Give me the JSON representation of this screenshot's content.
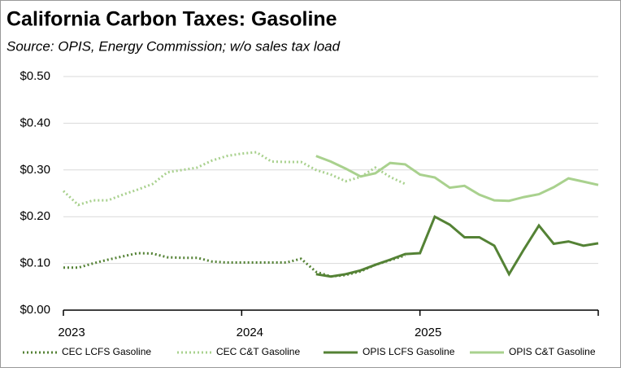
{
  "chart_data": {
    "type": "line",
    "title": "California Carbon Taxes:  Gasoline",
    "subtitle": "Source:  OPIS, Energy Commission; w/o sales tax load",
    "x": [
      2023,
      2023.083,
      2023.167,
      2023.25,
      2023.333,
      2023.417,
      2023.5,
      2023.583,
      2023.667,
      2023.75,
      2023.833,
      2023.917,
      2024,
      2024.083,
      2024.167,
      2024.25,
      2024.333,
      2024.417,
      2024.5,
      2024.583,
      2024.667,
      2024.75,
      2024.833,
      2024.917,
      2025,
      2025.083,
      2025.167,
      2025.25,
      2025.333,
      2025.417,
      2025.5,
      2025.583,
      2025.667,
      2025.75,
      2025.833,
      2025.917,
      2026
    ],
    "xlim": [
      2023,
      2026
    ],
    "xticks": [
      2023,
      2024,
      2025
    ],
    "ylim": [
      0,
      0.5
    ],
    "yticks": [
      {
        "value": 0,
        "label": "$0.00"
      },
      {
        "value": 0.1,
        "label": "$0.10"
      },
      {
        "value": 0.2,
        "label": "$0.20"
      },
      {
        "value": 0.3,
        "label": "$0.30"
      },
      {
        "value": 0.4,
        "label": "$0.40"
      },
      {
        "value": 0.5,
        "label": "$0.50"
      }
    ],
    "grid": true,
    "legend": "bottom",
    "series": [
      {
        "name": "CEC LCFS Gasoline",
        "color": "#548235",
        "style": "dotted",
        "values": [
          0.091,
          0.091,
          0.1,
          0.108,
          0.115,
          0.122,
          0.121,
          0.113,
          0.112,
          0.112,
          0.104,
          0.102,
          0.102,
          0.102,
          0.102,
          0.102,
          0.11,
          0.082,
          0.072,
          0.075,
          0.083,
          0.097,
          0.107,
          0.117,
          null,
          null,
          null,
          null,
          null,
          null,
          null,
          null,
          null,
          null,
          null,
          null,
          null
        ]
      },
      {
        "name": "CEC C&T Gasoline",
        "color": "#a9d18e",
        "style": "dotted",
        "values": [
          0.255,
          0.225,
          0.235,
          0.235,
          0.247,
          0.258,
          0.27,
          0.295,
          0.3,
          0.305,
          0.32,
          0.33,
          0.335,
          0.338,
          0.318,
          0.317,
          0.317,
          0.3,
          0.29,
          0.276,
          0.285,
          0.305,
          0.285,
          0.27,
          null,
          null,
          null,
          null,
          null,
          null,
          null,
          null,
          null,
          null,
          null,
          null,
          null
        ]
      },
      {
        "name": "OPIS LCFS Gasoline",
        "color": "#548235",
        "style": "solid",
        "values": [
          null,
          null,
          null,
          null,
          null,
          null,
          null,
          null,
          null,
          null,
          null,
          null,
          null,
          null,
          null,
          null,
          null,
          0.077,
          0.072,
          0.077,
          0.085,
          0.097,
          0.108,
          0.12,
          0.122,
          0.2,
          0.183,
          0.156,
          0.156,
          0.138,
          0.077,
          0.13,
          0.181,
          0.142,
          0.147,
          0.138,
          0.143
        ]
      },
      {
        "name": "OPIS C&T Gasoline",
        "color": "#a9d18e",
        "style": "solid",
        "values": [
          null,
          null,
          null,
          null,
          null,
          null,
          null,
          null,
          null,
          null,
          null,
          null,
          null,
          null,
          null,
          null,
          null,
          0.33,
          0.318,
          0.303,
          0.286,
          0.293,
          0.315,
          0.312,
          0.29,
          0.284,
          0.262,
          0.266,
          0.247,
          0.235,
          0.234,
          0.242,
          0.248,
          0.263,
          0.282,
          0.275,
          0.268
        ]
      }
    ]
  }
}
